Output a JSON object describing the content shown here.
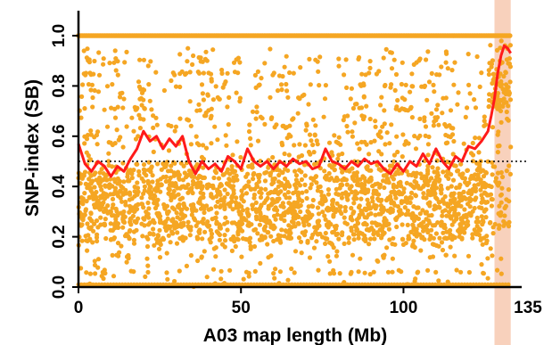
{
  "chart_data": {
    "type": "scatter",
    "title": "",
    "xlabel": "A03 map length (Mb)",
    "ylabel": "SNP-index (SB)",
    "xlim": [
      0,
      135
    ],
    "ylim": [
      0,
      1.0
    ],
    "x_ticks": [
      "0",
      "50",
      "100",
      "135"
    ],
    "y_ticks": [
      "0.0",
      "0.2",
      "0.4",
      "0.6",
      "0.8",
      "1.0"
    ],
    "reference_line": 0.5,
    "highlight_region": [
      128,
      133
    ],
    "series": [
      {
        "kind": "points",
        "color": "#f5a623"
      },
      {
        "kind": "sliding-window line",
        "color": "#ff1a1a",
        "x": [
          0,
          2,
          4,
          6,
          8,
          10,
          12,
          14,
          16,
          18,
          20,
          22,
          24,
          26,
          28,
          30,
          32,
          34,
          36,
          38,
          40,
          42,
          44,
          46,
          48,
          50,
          52,
          54,
          56,
          58,
          60,
          62,
          64,
          66,
          68,
          70,
          72,
          74,
          76,
          78,
          80,
          82,
          84,
          86,
          88,
          90,
          92,
          94,
          96,
          98,
          100,
          102,
          104,
          106,
          108,
          110,
          112,
          114,
          116,
          118,
          120,
          122,
          124,
          126,
          127,
          128,
          129,
          130,
          131,
          132,
          133
        ],
        "y": [
          0.57,
          0.49,
          0.46,
          0.5,
          0.48,
          0.44,
          0.48,
          0.46,
          0.51,
          0.55,
          0.62,
          0.58,
          0.6,
          0.55,
          0.59,
          0.56,
          0.6,
          0.5,
          0.45,
          0.5,
          0.47,
          0.49,
          0.46,
          0.52,
          0.5,
          0.47,
          0.55,
          0.5,
          0.48,
          0.5,
          0.47,
          0.5,
          0.48,
          0.51,
          0.49,
          0.5,
          0.47,
          0.48,
          0.55,
          0.5,
          0.49,
          0.47,
          0.5,
          0.48,
          0.51,
          0.49,
          0.5,
          0.47,
          0.45,
          0.49,
          0.46,
          0.5,
          0.48,
          0.53,
          0.49,
          0.55,
          0.5,
          0.47,
          0.52,
          0.5,
          0.56,
          0.55,
          0.58,
          0.62,
          0.68,
          0.75,
          0.85,
          0.92,
          0.96,
          0.95,
          0.93
        ]
      }
    ],
    "grid": false,
    "legend": "none"
  }
}
